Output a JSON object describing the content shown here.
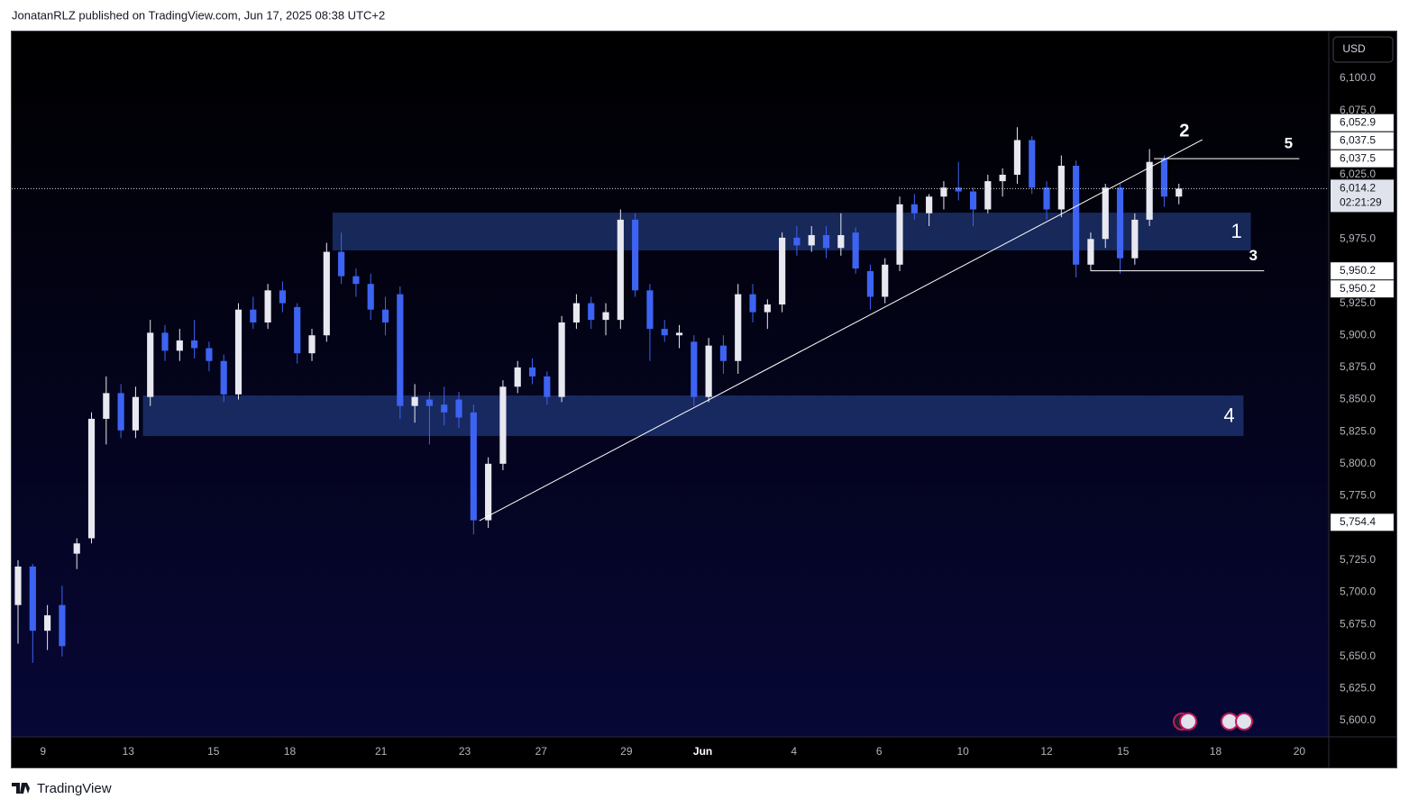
{
  "header": {
    "text": "JonatanRLZ published on TradingView.com, Jun 17, 2025 08:38 UTC+2"
  },
  "footer": {
    "brand": "TradingView"
  },
  "chart_data": {
    "type": "candlestick",
    "currency": "USD",
    "up_color": "#e8e8f0",
    "down_color": "#3d63f2",
    "open": [
      5690,
      5720,
      5670,
      5690,
      5730,
      5742,
      5835,
      5855,
      5826,
      5852,
      5902,
      5888,
      5896,
      5890,
      5880,
      5854,
      5920,
      5910,
      5935,
      5922,
      5886,
      5900,
      5965,
      5946,
      5940,
      5920,
      5932,
      5845,
      5850,
      5846,
      5850,
      5840,
      5756,
      5800,
      5860,
      5875,
      5868,
      5852,
      5910,
      5925,
      5912,
      5912,
      5990,
      5935,
      5905,
      5900,
      5895,
      5852,
      5892,
      5880,
      5932,
      5918,
      5924,
      5976,
      5970,
      5978,
      5968,
      5980,
      5950,
      5930,
      5955,
      6002,
      5995,
      6008,
      6015,
      6012,
      5998,
      6020,
      6025,
      6052,
      6015,
      5998,
      6032,
      5955,
      5975,
      6015,
      5960,
      5990,
      6037.5,
      6008
    ],
    "high": [
      5725,
      5722,
      5690,
      5705,
      5742,
      5840,
      5868,
      5862,
      5860,
      5912,
      5908,
      5905,
      5912,
      5895,
      5885,
      5925,
      5930,
      5940,
      5942,
      5925,
      5905,
      5972,
      5980,
      5952,
      5948,
      5930,
      5938,
      5862,
      5856,
      5860,
      5856,
      5846,
      5805,
      5865,
      5880,
      5882,
      5872,
      5915,
      5932,
      5930,
      5925,
      5998,
      5995,
      5940,
      5912,
      5908,
      5900,
      5898,
      5900,
      5940,
      5940,
      5928,
      5980,
      5985,
      5985,
      5985,
      5995,
      5984,
      5955,
      5960,
      6008,
      6010,
      6010,
      6020,
      6035,
      6015,
      6025,
      6030,
      6062,
      6055,
      6020,
      6040,
      6036,
      5980,
      6018,
      6018,
      5995,
      6045,
      6040,
      6018
    ],
    "low": [
      5660,
      5645,
      5655,
      5650,
      5718,
      5738,
      5815,
      5820,
      5820,
      5845,
      5880,
      5880,
      5882,
      5872,
      5848,
      5850,
      5905,
      5905,
      5918,
      5878,
      5880,
      5895,
      5940,
      5930,
      5912,
      5900,
      5835,
      5832,
      5815,
      5830,
      5828,
      5745,
      5750,
      5795,
      5855,
      5862,
      5846,
      5848,
      5905,
      5905,
      5900,
      5905,
      5930,
      5880,
      5895,
      5890,
      5845,
      5848,
      5870,
      5870,
      5910,
      5905,
      5918,
      5962,
      5965,
      5960,
      5962,
      5948,
      5920,
      5925,
      5950,
      5990,
      5985,
      5998,
      6005,
      5985,
      5995,
      6008,
      6018,
      6010,
      5990,
      5992,
      5945,
      5950,
      5968,
      5948,
      5955,
      5985,
      6000,
      6002
    ],
    "close": [
      5720,
      5670,
      5682,
      5658,
      5738,
      5835,
      5855,
      5826,
      5852,
      5902,
      5888,
      5896,
      5890,
      5880,
      5854,
      5920,
      5910,
      5935,
      5925,
      5886,
      5900,
      5965,
      5946,
      5940,
      5920,
      5910,
      5845,
      5852,
      5845,
      5840,
      5836,
      5756,
      5800,
      5860,
      5875,
      5868,
      5852,
      5910,
      5925,
      5912,
      5918,
      5990,
      5935,
      5905,
      5900,
      5902,
      5852,
      5892,
      5880,
      5932,
      5918,
      5924,
      5976,
      5970,
      5978,
      5968,
      5978,
      5952,
      5930,
      5955,
      6002,
      5995,
      6008,
      6015,
      6012,
      5998,
      6020,
      6025,
      6052,
      6015,
      5998,
      6032,
      5955,
      5975,
      6015,
      5960,
      5990,
      6035,
      6008,
      6014.2
    ],
    "xlim": [
      -0.43,
      89.2
    ],
    "xticks": [
      {
        "value": 1.7,
        "label": "9"
      },
      {
        "value": 7.5,
        "label": "13"
      },
      {
        "value": 13.3,
        "label": "15"
      },
      {
        "value": 18.5,
        "label": "18"
      },
      {
        "value": 24.7,
        "label": "21"
      },
      {
        "value": 30.4,
        "label": "23"
      },
      {
        "value": 35.6,
        "label": "27"
      },
      {
        "value": 41.4,
        "label": "29"
      },
      {
        "value": 46.6,
        "label": "Jun"
      },
      {
        "value": 52.8,
        "label": "4"
      },
      {
        "value": 58.6,
        "label": "6"
      },
      {
        "value": 64.3,
        "label": "10"
      },
      {
        "value": 70.0,
        "label": "12"
      },
      {
        "value": 75.2,
        "label": "15"
      },
      {
        "value": 81.5,
        "label": "18"
      },
      {
        "value": 87.2,
        "label": "20"
      }
    ],
    "ylim": [
      5587.4,
      6136.5
    ],
    "yticks": [
      {
        "value": 6100,
        "label": "6,100.0"
      },
      {
        "value": 6075,
        "label": "6,075.0"
      },
      {
        "value": 6025,
        "label": "6,025.0"
      },
      {
        "value": 5975,
        "label": "5,975.0"
      },
      {
        "value": 5925,
        "label": "5,925.0"
      },
      {
        "value": 5900,
        "label": "5,900.0"
      },
      {
        "value": 5875,
        "label": "5,875.0"
      },
      {
        "value": 5850,
        "label": "5,850.0"
      },
      {
        "value": 5825,
        "label": "5,825.0"
      },
      {
        "value": 5800,
        "label": "5,800.0"
      },
      {
        "value": 5775,
        "label": "5,775.0"
      },
      {
        "value": 5725,
        "label": "5,725.0"
      },
      {
        "value": 5700,
        "label": "5,700.0"
      },
      {
        "value": 5675,
        "label": "5,675.0"
      },
      {
        "value": 5650,
        "label": "5,650.0"
      },
      {
        "value": 5625,
        "label": "5,625.0"
      },
      {
        "value": 5600,
        "label": "5,600.0"
      }
    ],
    "zones": [
      {
        "label": "1",
        "x": [
          21.4,
          83.9
        ],
        "y": [
          5966.1,
          5995.5
        ]
      },
      {
        "label": "4",
        "x": [
          8.5,
          83.4
        ],
        "y": [
          5821.6,
          5853.2
        ]
      }
    ],
    "trendline": {
      "label": "2",
      "x": [
        31.4,
        80.6
      ],
      "y": [
        5755.7,
        6052.3
      ]
    },
    "levels": [
      {
        "label": "5",
        "value": 6037.5,
        "x": [
          77.3,
          87.2
        ]
      },
      {
        "label": "3",
        "value": 5950.2,
        "x": [
          73.0,
          84.8
        ]
      }
    ],
    "price_labels": [
      {
        "value": 6052.9,
        "label": "6,052.9"
      },
      {
        "value": 6037.5,
        "label": "6,037.5"
      },
      {
        "value": 6037.5,
        "label": "6,037.5"
      },
      {
        "value": 5950.2,
        "label": "5,950.2"
      },
      {
        "value": 5950.2,
        "label": "5,950.2"
      },
      {
        "value": 5754.4,
        "label": "5,754.4"
      }
    ],
    "last_price": {
      "value": 6014.2,
      "label": "6,014.2",
      "countdown": "02:21:29"
    }
  }
}
